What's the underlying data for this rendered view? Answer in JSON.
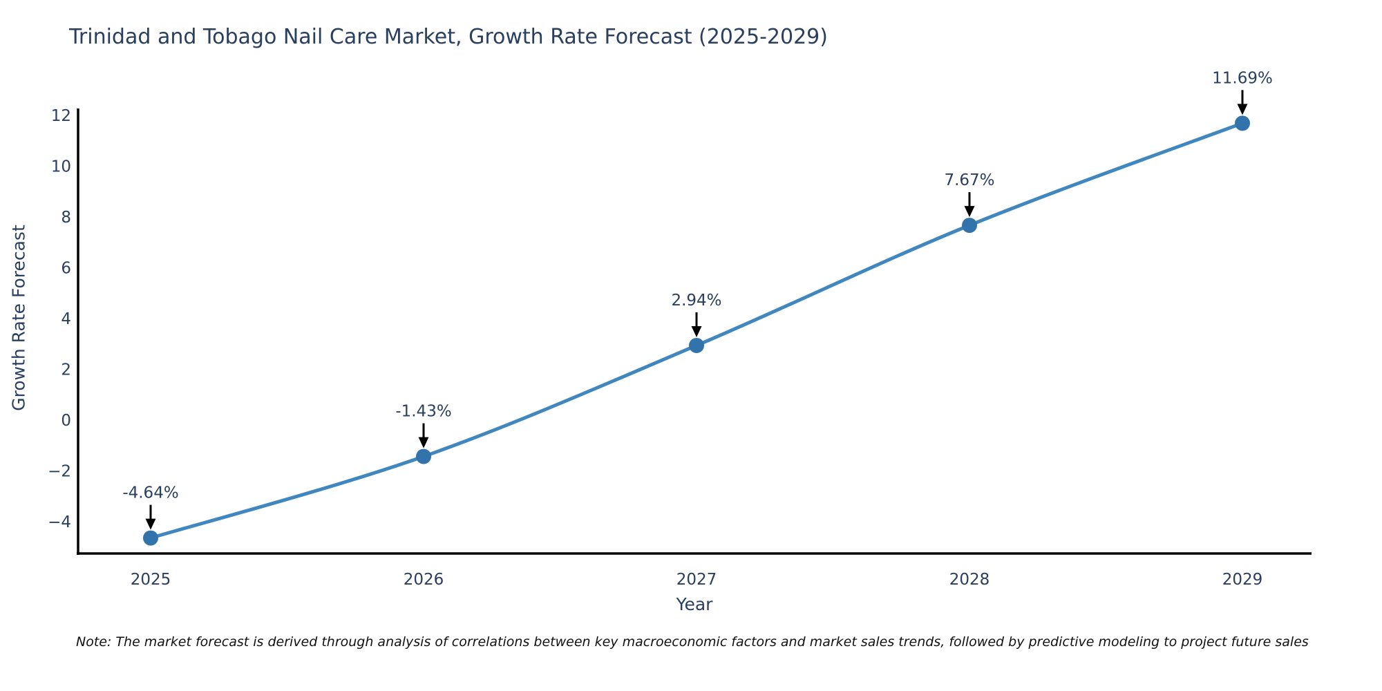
{
  "chart_data": {
    "type": "line",
    "title": "Trinidad and Tobago Nail Care Market, Growth Rate Forecast (2025-2029)",
    "xlabel": "Year",
    "ylabel": "Growth Rate Forecast",
    "x": [
      2025,
      2026,
      2027,
      2028,
      2029
    ],
    "series": [
      {
        "name": "Growth Rate Forecast",
        "values": [
          -4.64,
          -1.43,
          2.94,
          7.67,
          11.69
        ],
        "labels": [
          "-4.64%",
          "-1.43%",
          "2.94%",
          "7.67%",
          "11.69%"
        ]
      }
    ],
    "xtick_labels": [
      "2025",
      "2026",
      "2027",
      "2028",
      "2029"
    ],
    "yticks": [
      12,
      10,
      8,
      6,
      4,
      2,
      0,
      -2,
      -4
    ],
    "ytick_labels": [
      "12",
      "10",
      "8",
      "6",
      "4",
      "2",
      "0",
      "−2",
      "−4"
    ],
    "ylim": [
      -5.25,
      12.27
    ],
    "grid": false,
    "legend": false,
    "annotation_style": "down-arrow",
    "colors": {
      "line": "#4187bf",
      "marker": "#3273ab",
      "arrow": "#000000",
      "axis": "#000000",
      "text": "#2a3f5f",
      "note_text": "#111111"
    },
    "note": "Note: The market forecast is derived through analysis of correlations between key macroeconomic factors and market sales trends, followed by predictive modeling to project future sales"
  }
}
